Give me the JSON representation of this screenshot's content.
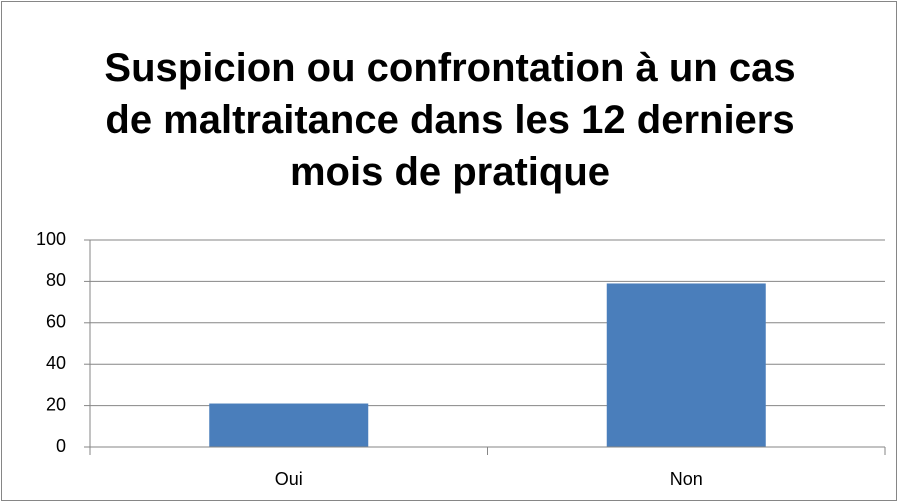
{
  "chart_data": {
    "type": "bar",
    "title": "Suspicion ou confrontation à un cas de maltraitance dans les 12 derniers mois de pratique",
    "categories": [
      "Oui",
      "Non"
    ],
    "values": [
      21,
      79
    ],
    "color": "#4a7ebb",
    "ylim": [
      0,
      100
    ],
    "yticks": [
      0,
      20,
      40,
      60,
      80,
      100
    ],
    "grid": true
  }
}
